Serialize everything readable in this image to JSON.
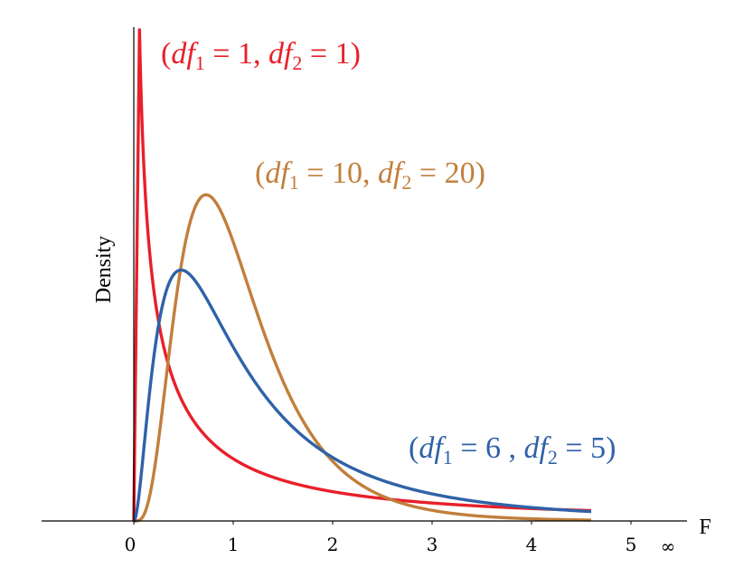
{
  "chart_data": {
    "type": "line",
    "xlabel": "F",
    "ylabel": "Density",
    "x_ticks": [
      "0",
      "1",
      "2",
      "3",
      "4",
      "5"
    ],
    "x_infinity_label": "∞",
    "xlim": [
      -0.9,
      5.7
    ],
    "ylim": [
      0,
      1.05
    ],
    "x_max_plotted": 4.6,
    "grid": false,
    "series": [
      {
        "name": "(df1 = 1, df2 = 1)",
        "df1": 1,
        "df2": 1,
        "color": "#e8202a",
        "label_parts": {
          "open": "(",
          "a": "df",
          "a_sub": "1",
          "a_eq": " = 1, ",
          "b": "df",
          "b_sub": "2",
          "b_eq": " = 1)"
        }
      },
      {
        "name": "(df1 = 10, df2 = 20)",
        "df1": 10,
        "df2": 20,
        "color": "#c17f3c",
        "label_parts": {
          "open": "(",
          "a": "df",
          "a_sub": "1",
          "a_eq": " = 10, ",
          "b": "df",
          "b_sub": "2",
          "b_eq": " = 20)"
        }
      },
      {
        "name": "(df1 = 6 , df2 = 5)",
        "df1": 6,
        "df2": 5,
        "color": "#2f62a8",
        "label_parts": {
          "open": "(",
          "a": "df",
          "a_sub": "1",
          "a_eq": " = 6 , ",
          "b": "df",
          "b_sub": "2",
          "b_eq": " = 5)"
        }
      }
    ]
  }
}
